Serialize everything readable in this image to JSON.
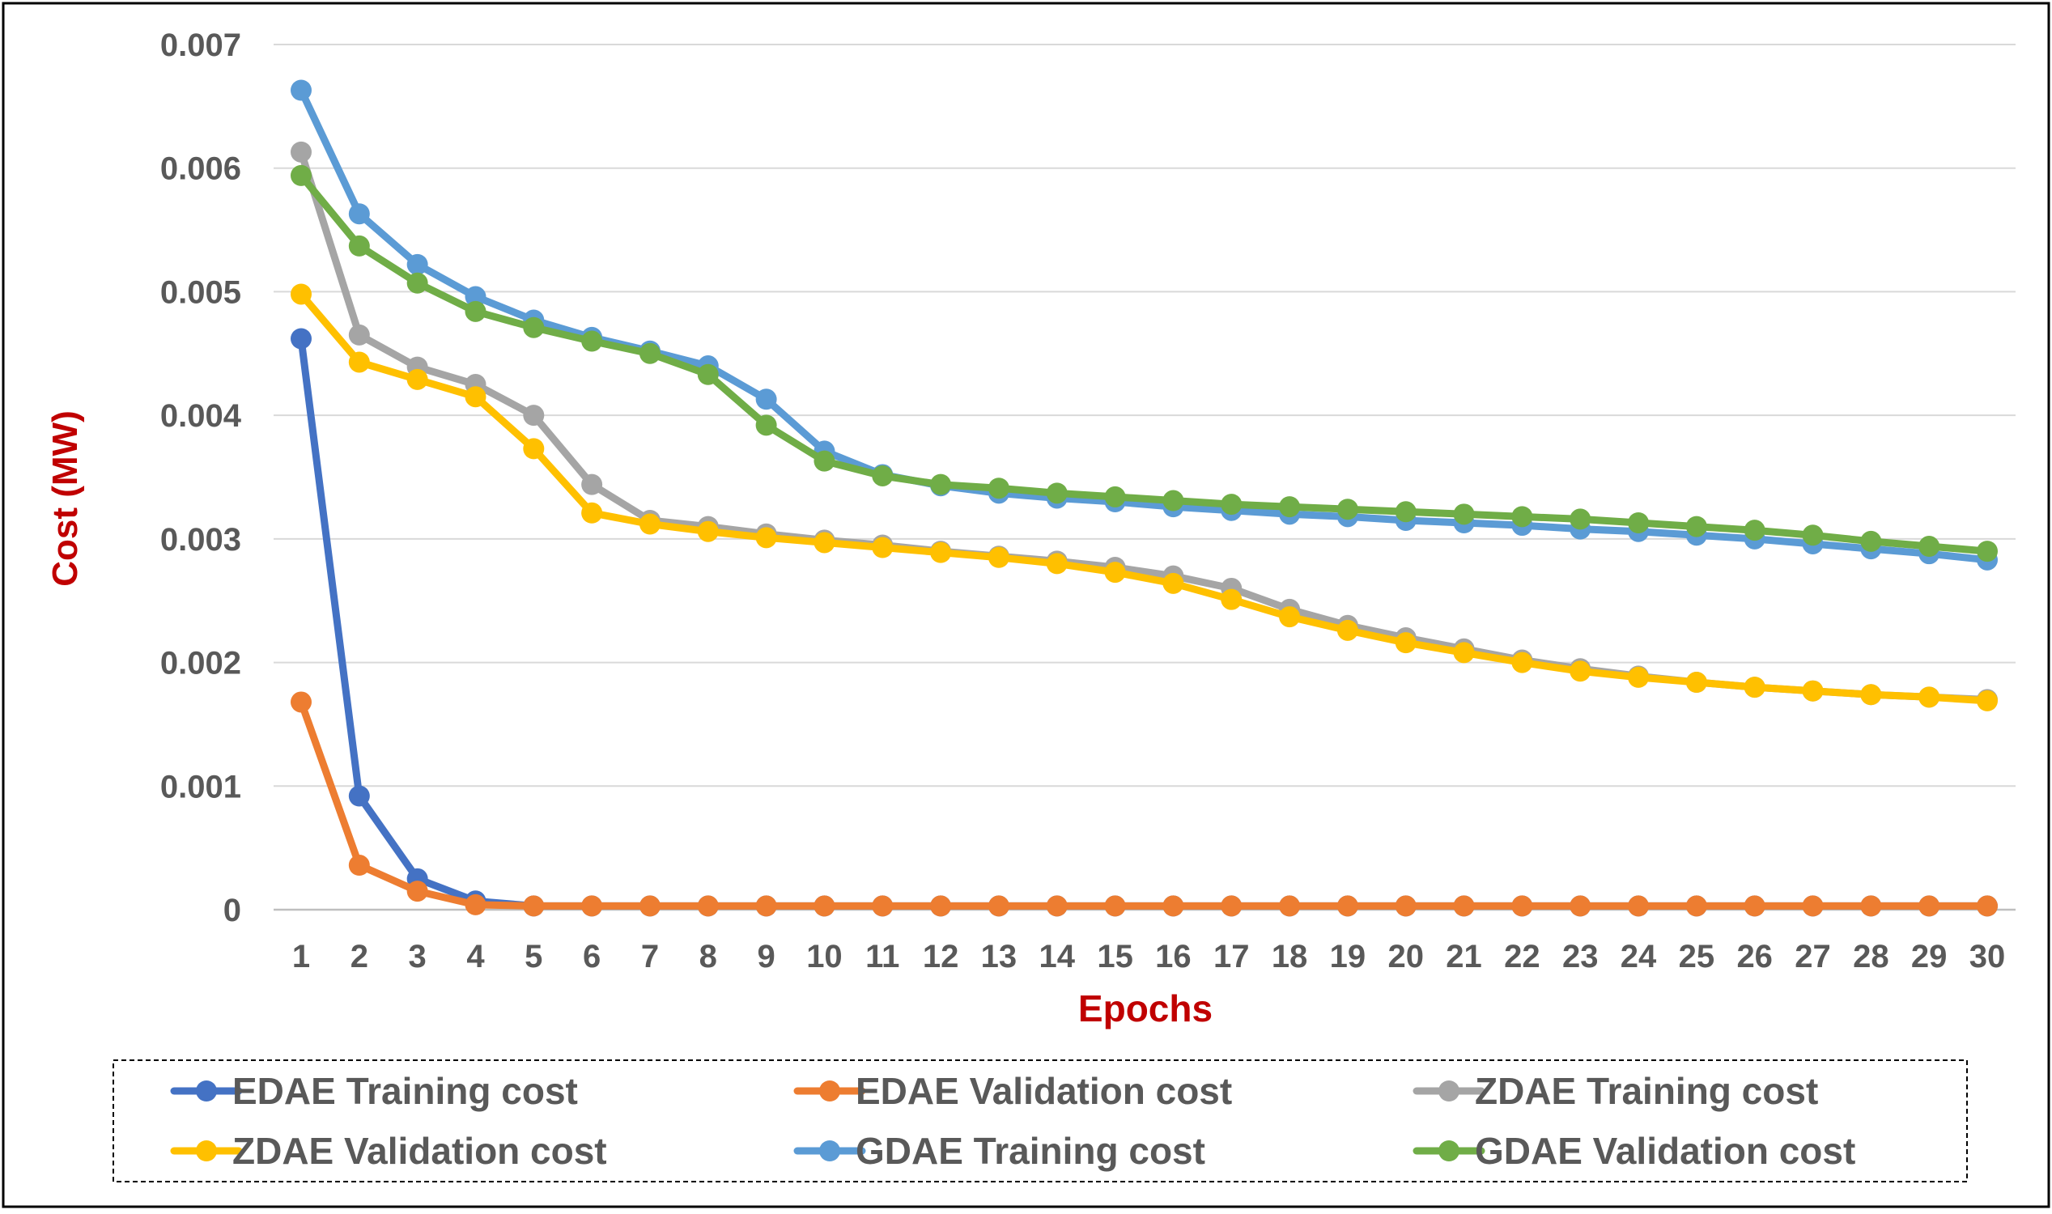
{
  "chart_data": {
    "type": "line",
    "title": "",
    "xlabel": "Epochs",
    "ylabel": "Cost (MW)",
    "ylim": [
      0,
      0.007
    ],
    "yticks": [
      "0",
      "0.001",
      "0.002",
      "0.003",
      "0.004",
      "0.005",
      "0.006",
      "0.007"
    ],
    "grid": true,
    "legend_position": "bottom",
    "categories": [
      "1",
      "2",
      "3",
      "4",
      "5",
      "6",
      "7",
      "8",
      "9",
      "10",
      "11",
      "12",
      "13",
      "14",
      "15",
      "16",
      "17",
      "18",
      "19",
      "20",
      "21",
      "22",
      "23",
      "24",
      "25",
      "26",
      "27",
      "28",
      "29",
      "30"
    ],
    "series": [
      {
        "name": "EDAE Training cost",
        "color": "#4472C4",
        "values": [
          0.00462,
          0.00092,
          0.00025,
          7e-05,
          3e-05,
          3e-05,
          3e-05,
          3e-05,
          3e-05,
          3e-05,
          3e-05,
          3e-05,
          3e-05,
          3e-05,
          3e-05,
          3e-05,
          3e-05,
          3e-05,
          3e-05,
          3e-05,
          3e-05,
          3e-05,
          3e-05,
          3e-05,
          3e-05,
          3e-05,
          3e-05,
          3e-05,
          3e-05,
          3e-05
        ]
      },
      {
        "name": "EDAE Validation cost",
        "color": "#ED7D31",
        "values": [
          0.00168,
          0.00036,
          0.00015,
          4e-05,
          3e-05,
          3e-05,
          3e-05,
          3e-05,
          3e-05,
          3e-05,
          3e-05,
          3e-05,
          3e-05,
          3e-05,
          3e-05,
          3e-05,
          3e-05,
          3e-05,
          3e-05,
          3e-05,
          3e-05,
          3e-05,
          3e-05,
          3e-05,
          3e-05,
          3e-05,
          3e-05,
          3e-05,
          3e-05,
          3e-05
        ]
      },
      {
        "name": "ZDAE Training cost",
        "color": "#A5A5A5",
        "values": [
          0.00613,
          0.00465,
          0.00439,
          0.00425,
          0.004,
          0.00344,
          0.00315,
          0.0031,
          0.00304,
          0.00299,
          0.00295,
          0.0029,
          0.00286,
          0.00282,
          0.00277,
          0.0027,
          0.0026,
          0.00243,
          0.0023,
          0.0022,
          0.00211,
          0.00202,
          0.00195,
          0.00189,
          0.00184,
          0.0018,
          0.00177,
          0.00174,
          0.00172,
          0.0017
        ]
      },
      {
        "name": "ZDAE Validation cost",
        "color": "#FFC000",
        "values": [
          0.00498,
          0.00443,
          0.00429,
          0.00415,
          0.00373,
          0.00321,
          0.00312,
          0.00306,
          0.00301,
          0.00297,
          0.00293,
          0.00289,
          0.00285,
          0.0028,
          0.00273,
          0.00264,
          0.00251,
          0.00237,
          0.00226,
          0.00216,
          0.00208,
          0.002,
          0.00193,
          0.00188,
          0.00184,
          0.0018,
          0.00177,
          0.00174,
          0.00172,
          0.00169
        ]
      },
      {
        "name": "GDAE Training cost",
        "color": "#5B9BD5",
        "values": [
          0.00663,
          0.00563,
          0.00522,
          0.00496,
          0.00477,
          0.00463,
          0.00452,
          0.0044,
          0.00413,
          0.00371,
          0.00352,
          0.00343,
          0.00337,
          0.00333,
          0.0033,
          0.00326,
          0.00323,
          0.0032,
          0.00318,
          0.00315,
          0.00313,
          0.00311,
          0.00308,
          0.00306,
          0.00303,
          0.003,
          0.00296,
          0.00292,
          0.00288,
          0.00283
        ]
      },
      {
        "name": "GDAE Validation cost",
        "color": "#70AD47",
        "values": [
          0.00594,
          0.00537,
          0.00507,
          0.00484,
          0.00471,
          0.0046,
          0.0045,
          0.00433,
          0.00392,
          0.00363,
          0.00351,
          0.00344,
          0.00341,
          0.00337,
          0.00334,
          0.00331,
          0.00328,
          0.00326,
          0.00324,
          0.00322,
          0.0032,
          0.00318,
          0.00316,
          0.00313,
          0.0031,
          0.00307,
          0.00303,
          0.00298,
          0.00294,
          0.0029
        ]
      }
    ]
  }
}
